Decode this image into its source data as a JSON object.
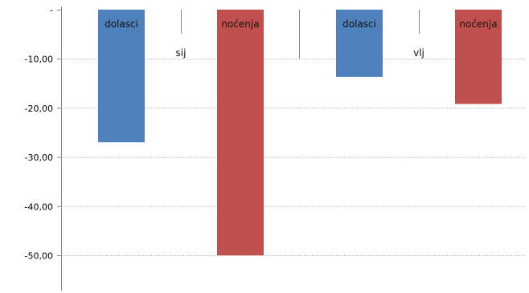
{
  "chart_data": {
    "type": "bar",
    "title": "",
    "xlabel": "",
    "ylabel": "",
    "ylim": [
      -56,
      0
    ],
    "yticks": [
      0,
      -10,
      -20,
      -30,
      -40,
      -50
    ],
    "ytick_labels": [
      "-",
      "-10,00",
      "-20,00",
      "-30,00",
      "-40,00",
      "-50,00"
    ],
    "grid": true,
    "groups": [
      {
        "category": "sij",
        "bars": [
          {
            "label": "dolasci",
            "value": -27.0,
            "color": "#4F81BD"
          },
          {
            "label": "noćenja",
            "value": -50.0,
            "color": "#C0504D"
          }
        ]
      },
      {
        "category": "vlj",
        "bars": [
          {
            "label": "dolasci",
            "value": -13.7,
            "color": "#4F81BD"
          },
          {
            "label": "noćenja",
            "value": -19.2,
            "color": "#C0504D"
          }
        ]
      }
    ]
  }
}
